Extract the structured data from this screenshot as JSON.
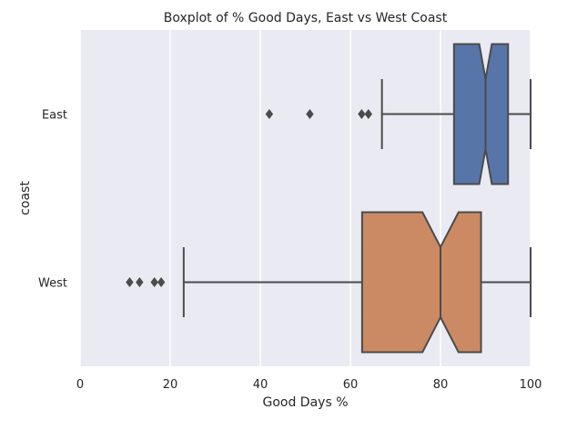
{
  "chart_data": {
    "type": "boxplot",
    "orientation": "horizontal",
    "notched": true,
    "title": "Boxplot of % Good Days, East vs West Coast",
    "xlabel": "Good Days %",
    "ylabel": "coast",
    "xlim": [
      0,
      100
    ],
    "xticks": [
      0,
      20,
      40,
      60,
      80,
      100
    ],
    "grid": true,
    "categories": [
      "East",
      "West"
    ],
    "boxes": [
      {
        "category": "East",
        "color": "#5875AA",
        "whisker_low": 67,
        "q1": 83,
        "median": 90,
        "q3": 95,
        "whisker_high": 100,
        "notch_low": 88.6,
        "notch_high": 91.4,
        "outliers": [
          42,
          51,
          62.5,
          64
        ]
      },
      {
        "category": "West",
        "color": "#CC8A64",
        "whisker_low": 23,
        "q1": 62.6,
        "median": 80,
        "q3": 89,
        "whisker_high": 100,
        "notch_low": 76,
        "notch_high": 84,
        "outliers": [
          11,
          13.2,
          16.5,
          18
        ]
      }
    ]
  },
  "style": {
    "plot_background": "#EAEAF2",
    "grid_color": "#FFFFFF",
    "line_color": "#4B4B4B"
  }
}
